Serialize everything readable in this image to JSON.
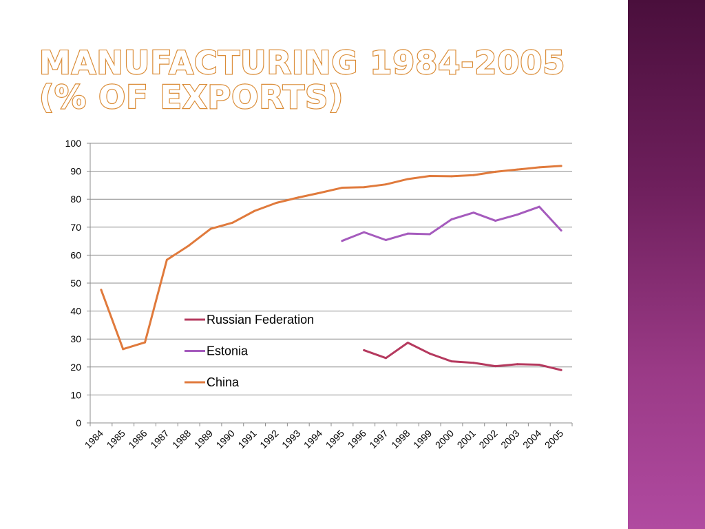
{
  "slide": {
    "title_line1": "Manufacturing 1984-2005",
    "title_line2": "(% of exports)",
    "accent_color": "#d98a35"
  },
  "chart_data": {
    "type": "line",
    "title": "Manufacturing 1984-2005 (% of exports)",
    "xlabel": "",
    "ylabel": "",
    "ylim": [
      0,
      100
    ],
    "yticks": [
      0,
      10,
      20,
      30,
      40,
      50,
      60,
      70,
      80,
      90,
      100
    ],
    "grid": true,
    "categories": [
      "1984",
      "1985",
      "1986",
      "1987",
      "1988",
      "1989",
      "1990",
      "1991",
      "1992",
      "1993",
      "1994",
      "1995",
      "1996",
      "1997",
      "1998",
      "1999",
      "2000",
      "2001",
      "2002",
      "2003",
      "2004",
      "2005"
    ],
    "legend_position": "center-left",
    "series": [
      {
        "name": "Russian Federation",
        "color": "#b5395e",
        "values": [
          null,
          null,
          null,
          null,
          null,
          null,
          null,
          null,
          null,
          null,
          null,
          null,
          26.0,
          23.2,
          28.7,
          24.8,
          22.0,
          21.5,
          20.3,
          21.0,
          20.8,
          18.9
        ]
      },
      {
        "name": "Estonia",
        "color": "#a55bbd",
        "values": [
          null,
          null,
          null,
          null,
          null,
          null,
          null,
          null,
          null,
          null,
          null,
          65.1,
          68.2,
          65.4,
          67.7,
          67.5,
          72.8,
          75.2,
          72.3,
          74.5,
          77.3,
          68.8
        ]
      },
      {
        "name": "China",
        "color": "#e07a3c",
        "values": [
          47.6,
          26.4,
          28.8,
          58.3,
          63.4,
          69.4,
          71.6,
          75.8,
          78.7,
          80.6,
          82.3,
          84.1,
          84.3,
          85.3,
          87.2,
          88.3,
          88.2,
          88.6,
          89.8,
          90.6,
          91.4,
          91.9
        ]
      }
    ]
  }
}
